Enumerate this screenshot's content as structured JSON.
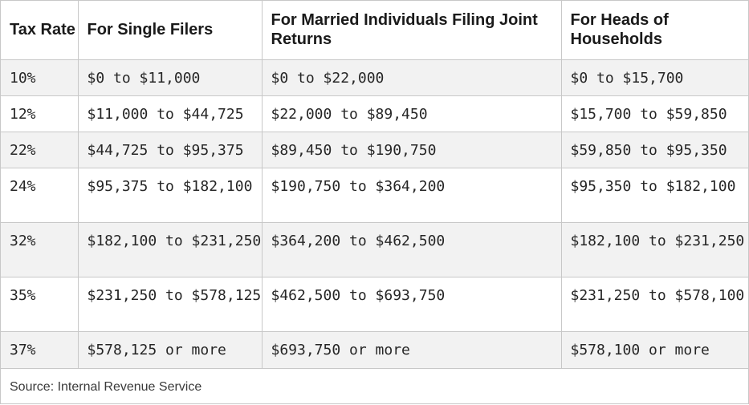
{
  "table": {
    "headers": [
      "Tax Rate",
      "For Single Filers",
      "For Married Individuals Filing Joint Returns",
      "For Heads of Households"
    ],
    "rows": [
      [
        "10%",
        "$0 to $11,000",
        "$0 to $22,000",
        "$0 to $15,700"
      ],
      [
        "12%",
        "$11,000 to $44,725",
        "$22,000 to $89,450",
        "$15,700 to $59,850"
      ],
      [
        "22%",
        "$44,725 to $95,375",
        "$89,450 to $190,750",
        "$59,850 to $95,350"
      ],
      [
        "24%",
        "$95,375 to $182,100",
        "$190,750 to $364,200",
        "$95,350 to $182,100"
      ],
      [
        "32%",
        "$182,100 to $231,250",
        "$364,200 to $462,500",
        "$182,100 to $231,250"
      ],
      [
        "35%",
        "$231,250 to $578,125",
        "$462,500 to $693,750",
        "$231,250 to $578,100"
      ],
      [
        "37%",
        "$578,125 or more",
        "$693,750 or more",
        "$578,100 or more"
      ]
    ],
    "source": "Source: Internal Revenue Service"
  },
  "colors": {
    "shaded_row": "#f2f2f2",
    "border": "#c8c8c8"
  }
}
